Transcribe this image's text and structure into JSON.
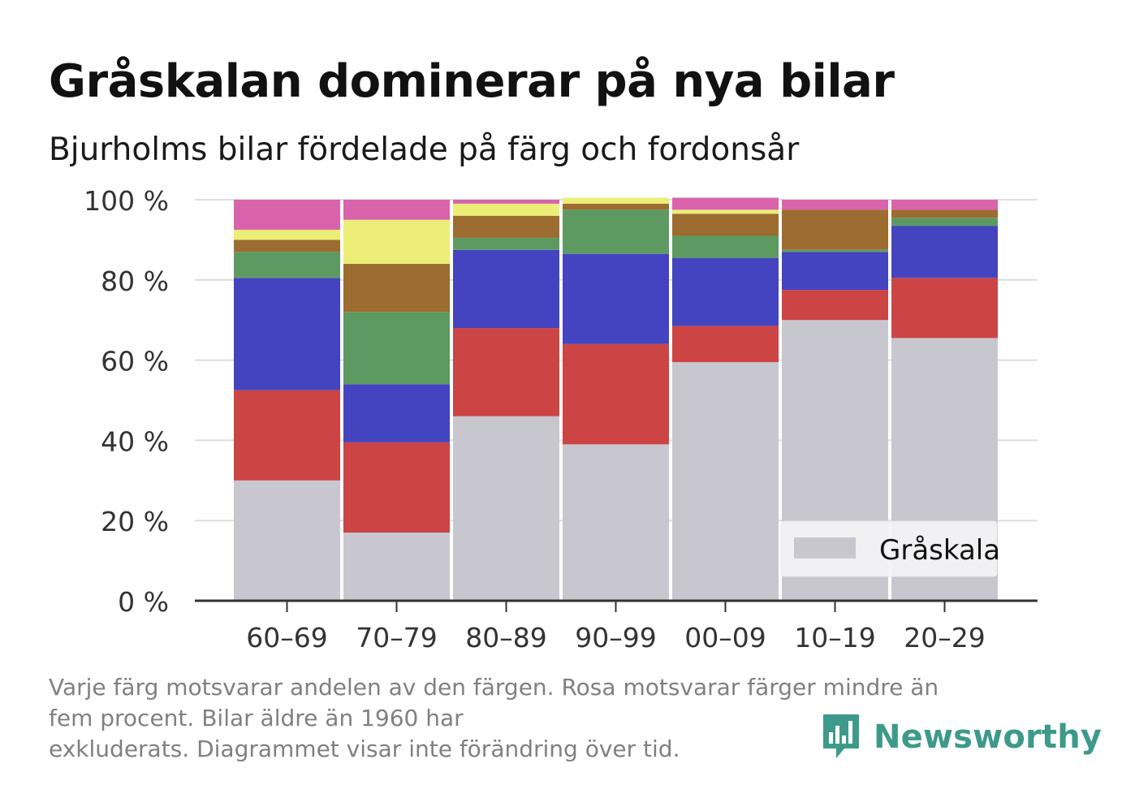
{
  "title": "Gråskalan dominerar på nya bilar",
  "subtitle": "Bjurholms bilar fördelade på färg och fordonsår",
  "footnote": [
    "Varje färg motsvarar andelen av den färgen. Rosa motsvarar färger mindre än",
    "fem procent. Bilar äldre än 1960 har",
    "exkluderats. Diagrammet visar inte förändring över tid."
  ],
  "brand": {
    "name": "Newsworthy",
    "icon": "bar-chart-speech-bubble-icon",
    "color": "#3d9a8b"
  },
  "legend": {
    "label": "Gråskala",
    "position": "bottom-right"
  },
  "chart_data": {
    "type": "bar",
    "stacked": true,
    "categories": [
      "60–69",
      "70–79",
      "80–89",
      "90–99",
      "00–09",
      "10–19",
      "20–29"
    ],
    "y_ticks": [
      "0 %",
      "20 %",
      "40 %",
      "60 %",
      "80 %",
      "100 %"
    ],
    "ylim": [
      0,
      100
    ],
    "grid": true,
    "series": [
      {
        "name": "Gråskala",
        "color": "#c8c7cf",
        "values": [
          30,
          17,
          46,
          39,
          59.5,
          70,
          65.5
        ]
      },
      {
        "color": "#cc4444",
        "values": [
          22.5,
          22.5,
          22,
          25,
          9,
          7.5,
          15
        ]
      },
      {
        "color": "#4444c0",
        "values": [
          28,
          14.5,
          19.5,
          22.5,
          17,
          9.5,
          13
        ]
      },
      {
        "color": "#5c9a62",
        "values": [
          6.5,
          18,
          3,
          11,
          5.5,
          0.5,
          2
        ]
      },
      {
        "color": "#9c6c30",
        "values": [
          3,
          12,
          5.5,
          1.5,
          5.5,
          10,
          2
        ]
      },
      {
        "color": "#ecee78",
        "values": [
          2.5,
          11,
          3,
          1.5,
          1,
          0,
          0
        ]
      },
      {
        "color": "#d964ac",
        "values": [
          7.5,
          5,
          1,
          0,
          3,
          2.5,
          2.5
        ]
      }
    ]
  }
}
